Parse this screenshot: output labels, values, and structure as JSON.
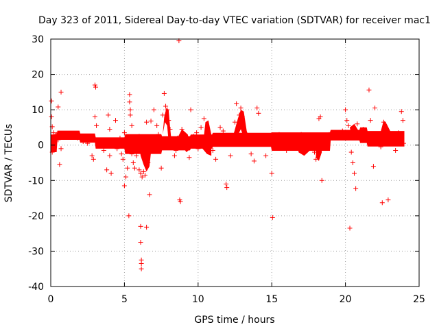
{
  "chart_data": {
    "type": "scatter",
    "title": "Day 323 of 2011, Sidereal Day-to-day VTEC variation (SDTVAR) for receiver mac1",
    "xlabel": "GPS time / hours",
    "ylabel": "SDTVAR / TECUs",
    "xlim": [
      0,
      25
    ],
    "ylim": [
      -40,
      30
    ],
    "xticks": [
      {
        "value": 0,
        "label": "0"
      },
      {
        "value": 5,
        "label": "5"
      },
      {
        "value": 10,
        "label": "10"
      },
      {
        "value": 15,
        "label": "15"
      },
      {
        "value": 20,
        "label": "20"
      },
      {
        "value": 25,
        "label": "25"
      }
    ],
    "yticks": [
      {
        "value": -40,
        "label": "-40"
      },
      {
        "value": -30,
        "label": "-30"
      },
      {
        "value": -20,
        "label": "-20"
      },
      {
        "value": -10,
        "label": "-10"
      },
      {
        "value": 0,
        "label": "0"
      },
      {
        "value": 10,
        "label": "10"
      },
      {
        "value": 20,
        "label": "20"
      },
      {
        "value": 30,
        "label": "30"
      }
    ],
    "grid": true,
    "marker": "+",
    "color": "#ff0000",
    "series": [
      {
        "name": "mac1",
        "points": [
          [
            0.05,
            12.5
          ],
          [
            0.05,
            8.0
          ],
          [
            0.1,
            5.2
          ],
          [
            0.1,
            -2.0
          ],
          [
            0.2,
            3.5
          ],
          [
            0.3,
            2.8
          ],
          [
            0.4,
            3.0
          ],
          [
            0.5,
            1.5
          ],
          [
            0.5,
            10.8
          ],
          [
            0.6,
            -5.5
          ],
          [
            0.7,
            15.0
          ],
          [
            0.7,
            -1.0
          ],
          [
            0.9,
            2.9
          ],
          [
            1.2,
            2.5
          ],
          [
            1.5,
            2.8
          ],
          [
            1.8,
            2.0
          ],
          [
            2.0,
            2.5
          ],
          [
            2.2,
            1.0
          ],
          [
            2.5,
            0.5
          ],
          [
            2.7,
            1.5
          ],
          [
            2.8,
            -3.0
          ],
          [
            2.9,
            -4.0
          ],
          [
            3.0,
            17.0
          ],
          [
            3.05,
            16.4
          ],
          [
            3.0,
            8.0
          ],
          [
            3.1,
            5.5
          ],
          [
            3.2,
            1.0
          ],
          [
            3.4,
            0.5
          ],
          [
            3.6,
            -1.5
          ],
          [
            3.8,
            -7.0
          ],
          [
            3.9,
            8.5
          ],
          [
            4.0,
            -3.0
          ],
          [
            4.0,
            4.5
          ],
          [
            4.1,
            -8.0
          ],
          [
            4.3,
            1.5
          ],
          [
            4.4,
            7.0
          ],
          [
            4.5,
            -1.0
          ],
          [
            4.7,
            2.0
          ],
          [
            4.8,
            -2.5
          ],
          [
            4.9,
            -4.0
          ],
          [
            5.0,
            3.5
          ],
          [
            5.0,
            -11.5
          ],
          [
            5.1,
            -9.0
          ],
          [
            5.2,
            -6.5
          ],
          [
            5.3,
            -20.0
          ],
          [
            5.35,
            14.3
          ],
          [
            5.35,
            12.2
          ],
          [
            5.4,
            10.0
          ],
          [
            5.4,
            8.5
          ],
          [
            5.5,
            5.5
          ],
          [
            5.5,
            -2.5
          ],
          [
            5.6,
            -5.0
          ],
          [
            5.7,
            -6.5
          ],
          [
            5.8,
            -3.0
          ],
          [
            5.9,
            0.5
          ],
          [
            6.0,
            2.5
          ],
          [
            6.0,
            -7.0
          ],
          [
            6.1,
            -8.0
          ],
          [
            6.1,
            -23.0
          ],
          [
            6.1,
            -27.5
          ],
          [
            6.15,
            -32.5
          ],
          [
            6.15,
            -33.5
          ],
          [
            6.15,
            -35.0
          ],
          [
            6.2,
            -9.0
          ],
          [
            6.3,
            -7.5
          ],
          [
            6.4,
            -8.5
          ],
          [
            6.5,
            -23.2
          ],
          [
            6.5,
            6.5
          ],
          [
            6.6,
            -5.0
          ],
          [
            6.7,
            -14.0
          ],
          [
            6.8,
            6.8
          ],
          [
            7.0,
            10.0
          ],
          [
            7.0,
            1.5
          ],
          [
            7.2,
            5.5
          ],
          [
            7.3,
            3.0
          ],
          [
            7.5,
            -6.5
          ],
          [
            7.6,
            8.5
          ],
          [
            7.7,
            14.6
          ],
          [
            7.8,
            11.0
          ],
          [
            7.9,
            10.0
          ],
          [
            8.0,
            7.0
          ],
          [
            8.1,
            4.5
          ],
          [
            8.2,
            0.5
          ],
          [
            8.4,
            -3.0
          ],
          [
            8.5,
            -1.5
          ],
          [
            8.6,
            2.0
          ],
          [
            8.7,
            29.5
          ],
          [
            8.75,
            -15.5
          ],
          [
            8.8,
            -16.0
          ],
          [
            8.9,
            4.5
          ],
          [
            9.0,
            3.0
          ],
          [
            9.2,
            2.0
          ],
          [
            9.4,
            -3.5
          ],
          [
            9.5,
            10.0
          ],
          [
            9.7,
            2.5
          ],
          [
            9.9,
            3.5
          ],
          [
            10.0,
            -1.0
          ],
          [
            10.2,
            5.0
          ],
          [
            10.4,
            7.5
          ],
          [
            10.6,
            2.0
          ],
          [
            10.8,
            0.5
          ],
          [
            11.0,
            -1.5
          ],
          [
            11.2,
            -4.0
          ],
          [
            11.5,
            5.0
          ],
          [
            11.7,
            4.0
          ],
          [
            11.9,
            -11.0
          ],
          [
            11.95,
            -12.0
          ],
          [
            12.0,
            2.0
          ],
          [
            12.2,
            -3.0
          ],
          [
            12.5,
            6.5
          ],
          [
            12.6,
            11.7
          ],
          [
            12.8,
            8.5
          ],
          [
            12.9,
            10.5
          ],
          [
            13.0,
            8.0
          ],
          [
            13.2,
            3.0
          ],
          [
            13.4,
            1.0
          ],
          [
            13.6,
            -2.5
          ],
          [
            13.8,
            -4.5
          ],
          [
            14.0,
            10.5
          ],
          [
            14.1,
            9.0
          ],
          [
            14.2,
            1.5
          ],
          [
            14.4,
            0.5
          ],
          [
            14.6,
            -3.0
          ],
          [
            14.8,
            1.0
          ],
          [
            15.0,
            -8.0
          ],
          [
            15.05,
            -20.5
          ],
          [
            15.2,
            2.0
          ],
          [
            15.5,
            3.0
          ],
          [
            15.8,
            0.0
          ],
          [
            16.0,
            -1.5
          ],
          [
            16.3,
            2.5
          ],
          [
            16.6,
            1.0
          ],
          [
            17.0,
            3.0
          ],
          [
            17.3,
            0.5
          ],
          [
            17.6,
            2.0
          ],
          [
            17.9,
            -2.0
          ],
          [
            18.0,
            -4.0
          ],
          [
            18.2,
            7.5
          ],
          [
            18.3,
            8.0
          ],
          [
            18.4,
            -10.0
          ],
          [
            18.6,
            2.5
          ],
          [
            18.9,
            3.0
          ],
          [
            19.2,
            3.5
          ],
          [
            19.5,
            2.0
          ],
          [
            19.8,
            4.0
          ],
          [
            20.0,
            10.0
          ],
          [
            20.1,
            7.0
          ],
          [
            20.2,
            5.5
          ],
          [
            20.3,
            -23.5
          ],
          [
            20.4,
            -2.0
          ],
          [
            20.5,
            -5.0
          ],
          [
            20.6,
            -8.0
          ],
          [
            20.7,
            -12.3
          ],
          [
            20.8,
            6.0
          ],
          [
            21.0,
            2.5
          ],
          [
            21.2,
            4.5
          ],
          [
            21.4,
            3.0
          ],
          [
            21.6,
            15.6
          ],
          [
            21.7,
            7.0
          ],
          [
            21.8,
            0.5
          ],
          [
            21.9,
            -6.0
          ],
          [
            22.0,
            10.5
          ],
          [
            22.2,
            2.0
          ],
          [
            22.4,
            -0.5
          ],
          [
            22.5,
            -16.3
          ],
          [
            22.6,
            6.5
          ],
          [
            22.8,
            4.5
          ],
          [
            22.9,
            -15.5
          ],
          [
            23.0,
            2.5
          ],
          [
            23.2,
            1.0
          ],
          [
            23.4,
            -1.5
          ],
          [
            23.6,
            3.5
          ],
          [
            23.8,
            9.5
          ],
          [
            23.9,
            7.0
          ],
          [
            23.95,
            0.5
          ]
        ]
      }
    ]
  }
}
